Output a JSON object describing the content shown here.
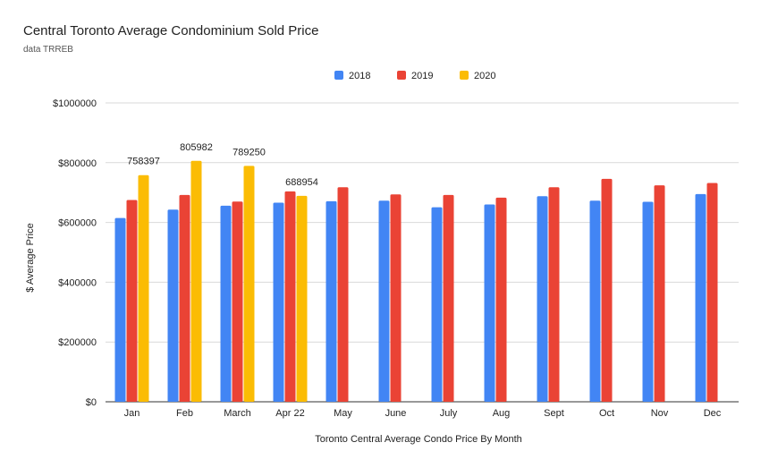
{
  "chart_data": {
    "type": "bar",
    "title": "Central Toronto Average Condominium Sold Price",
    "subtitle": "data TRREB",
    "xlabel": "Toronto Central Average Condo Price By Month",
    "ylabel": "$ Average Price",
    "ylim": [
      0,
      1000000
    ],
    "yticks": [
      0,
      200000,
      400000,
      600000,
      800000,
      1000000
    ],
    "ytick_labels": [
      "$0",
      "$200000",
      "$400000",
      "$600000",
      "$800000",
      "$1000000"
    ],
    "grid": true,
    "legend_position": "top-center",
    "categories": [
      "Jan",
      "Feb",
      "March",
      "Apr 22",
      "May",
      "June",
      "July",
      "Aug",
      "Sept",
      "Oct",
      "Nov",
      "Dec"
    ],
    "series": [
      {
        "name": "2018",
        "color": "#4285f4",
        "values": [
          615000,
          643000,
          656000,
          666000,
          671000,
          673000,
          651000,
          660000,
          688000,
          673000,
          669000,
          695000
        ]
      },
      {
        "name": "2019",
        "color": "#ea4335",
        "values": [
          675000,
          692000,
          670000,
          704000,
          718000,
          694000,
          692000,
          683000,
          718000,
          746000,
          724000,
          732000
        ]
      },
      {
        "name": "2020",
        "color": "#fbbc04",
        "values": [
          758397,
          805982,
          789250,
          688954,
          null,
          null,
          null,
          null,
          null,
          null,
          null,
          null
        ],
        "data_labels": [
          "758397",
          "805982",
          "789250",
          "688954"
        ]
      }
    ]
  }
}
